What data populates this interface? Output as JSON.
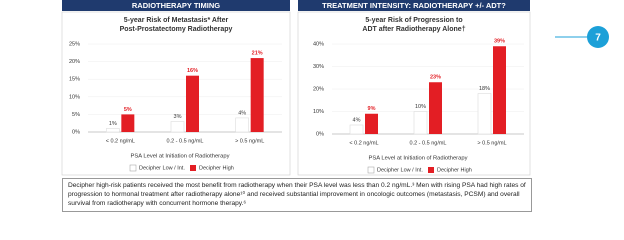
{
  "headers": [
    "RADIOTHERAPY TIMING",
    "TREATMENT INTENSITY: RADIOTHERAPY +/- ADT?"
  ],
  "badge": "7",
  "summary": "Decipher high-risk patients received the most benefit from radiotherapy when their PSA level was less than 0.2 ng/mL.³ Men with rising PSA had high rates of progression to hormonal treatment after radiotherapy alone¹⁰ and received substantial improvement in oncologic outcomes (metastasis, PCSM) and overall survival from radiotherapy with concurrent hormone therapy.⁶",
  "chart_data": [
    {
      "type": "bar",
      "title": [
        "5-year Risk of Metastasis* After",
        "Post-Prostatectomy Radiotherapy"
      ],
      "x_label": "PSA Level at Initiation of Radiotherapy",
      "categories": [
        "< 0.2 ng/mL",
        "0.2 - 0.5 ng/mL",
        "> 0.5 ng/mL"
      ],
      "series": [
        {
          "name": "Decipher Low / Int.",
          "color": "#ffffff",
          "values": [
            1,
            3,
            4
          ],
          "value_labels": [
            "1%",
            "3%",
            "4%"
          ]
        },
        {
          "name": "Decipher High",
          "color": "#e31e24",
          "values": [
            5,
            16,
            21
          ],
          "value_labels": [
            "5%",
            "16%",
            "21%"
          ]
        }
      ],
      "ylim": [
        0,
        25
      ],
      "yticks": [
        {
          "value": 0,
          "label": "0%"
        },
        {
          "value": 5,
          "label": "5%"
        },
        {
          "value": 10,
          "label": "10%"
        },
        {
          "value": 15,
          "label": "15%"
        },
        {
          "value": 20,
          "label": "20%"
        },
        {
          "value": 25,
          "label": "25%"
        }
      ]
    },
    {
      "type": "bar",
      "title": [
        "5-year Risk of Progression to",
        "ADT after Radiotherapy Alone†"
      ],
      "x_label": "PSA Level at Initiation of Radiotherapy",
      "categories": [
        "< 0.2 ng/mL",
        "0.2 - 0.5 ng/mL",
        "> 0.5 ng/mL"
      ],
      "series": [
        {
          "name": "Decipher Low / Int.",
          "color": "#ffffff",
          "values": [
            4,
            10,
            18
          ],
          "value_labels": [
            "4%",
            "10%",
            "18%"
          ]
        },
        {
          "name": "Decipher High",
          "color": "#e31e24",
          "values": [
            9,
            23,
            39
          ],
          "value_labels": [
            "9%",
            "23%",
            "39%"
          ]
        }
      ],
      "ylim": [
        0,
        40
      ],
      "yticks": [
        {
          "value": 0,
          "label": "0%"
        },
        {
          "value": 10,
          "label": "10%"
        },
        {
          "value": 20,
          "label": "20%"
        },
        {
          "value": 30,
          "label": "30%"
        },
        {
          "value": 40,
          "label": "40%"
        }
      ]
    }
  ]
}
